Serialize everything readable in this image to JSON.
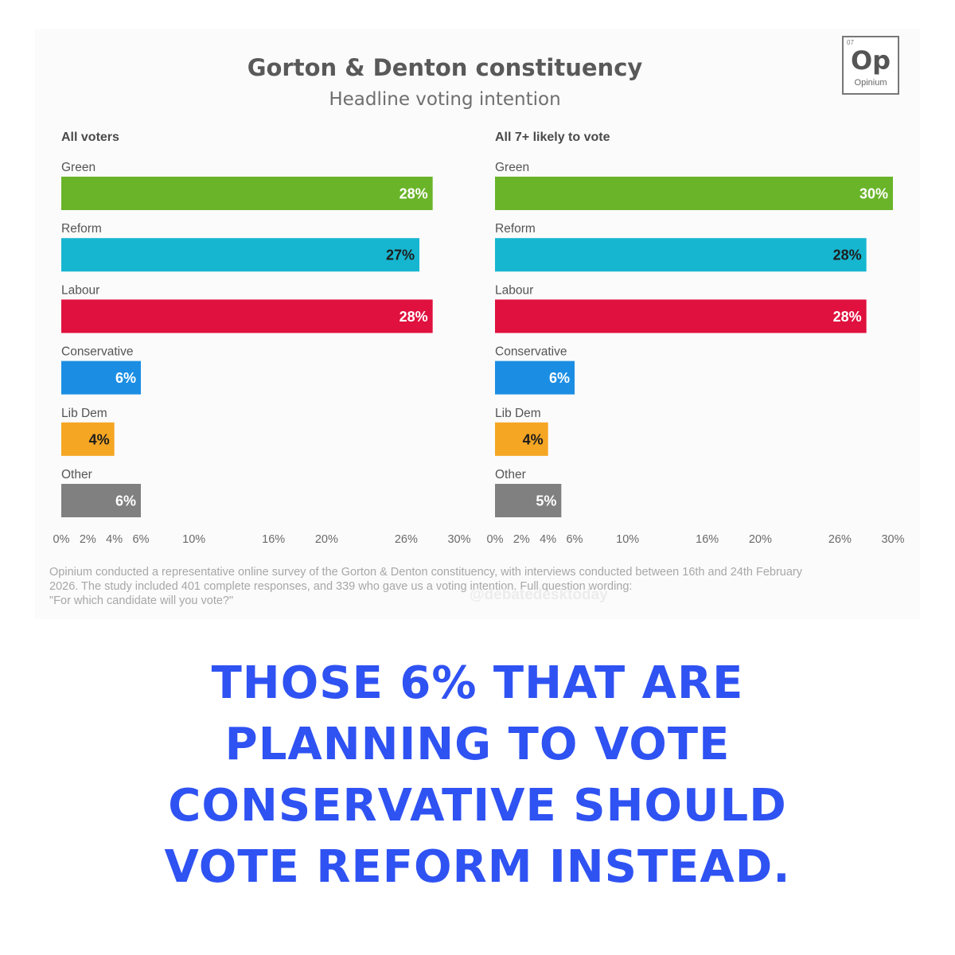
{
  "header": {
    "title": "Gorton & Denton constituency",
    "subtitle": "Headline voting intention"
  },
  "logo": {
    "number": "07",
    "symbol": "Op",
    "name": "Opinium"
  },
  "chart_data": [
    {
      "type": "bar",
      "orientation": "horizontal",
      "title": "All voters",
      "categories": [
        "Green",
        "Reform",
        "Labour",
        "Conservative",
        "Lib Dem",
        "Other"
      ],
      "values": [
        28,
        27,
        28,
        6,
        4,
        6
      ],
      "value_labels": [
        "28%",
        "27%",
        "28%",
        "6%",
        "4%",
        "6%"
      ],
      "xlim": [
        0,
        30
      ],
      "x_ticks": [
        0,
        2,
        4,
        6,
        10,
        16,
        20,
        26,
        30
      ],
      "x_tick_labels": [
        "0%",
        "2%",
        "4%",
        "6%",
        "10%",
        "16%",
        "20%",
        "26%",
        "30%"
      ]
    },
    {
      "type": "bar",
      "orientation": "horizontal",
      "title": "All 7+ likely to vote",
      "categories": [
        "Green",
        "Reform",
        "Labour",
        "Conservative",
        "Lib Dem",
        "Other"
      ],
      "values": [
        30,
        28,
        28,
        6,
        4,
        5
      ],
      "value_labels": [
        "30%",
        "28%",
        "28%",
        "6%",
        "4%",
        "5%"
      ],
      "xlim": [
        0,
        30
      ],
      "x_ticks": [
        0,
        2,
        4,
        6,
        10,
        16,
        20,
        26,
        30
      ],
      "x_tick_labels": [
        "0%",
        "2%",
        "4%",
        "6%",
        "10%",
        "16%",
        "20%",
        "26%",
        "30%"
      ]
    }
  ],
  "colors": {
    "Green": "#6ab42a",
    "Reform": "#16b6d0",
    "Labour": "#e0113f",
    "Conservative": "#1b8ee4",
    "Lib Dem": "#f5a623",
    "Other": "#808080",
    "label_dark": "#1d1d1d",
    "label_light": "#ffffff"
  },
  "footnote": {
    "line1": "Opinium conducted a representative online survey of the Gorton & Denton constituency, with interviews conducted between 16th and 24th February",
    "line2": "2026. The study included 401 complete responses, and 339 who gave us a voting intention. Full question wording:",
    "line3": "\"For which candidate will you vote?\""
  },
  "watermark": "@debatedesktoday",
  "caption": {
    "line1": "THOSE 6% THAT ARE",
    "line2": "PLANNING TO VOTE",
    "line3": "CONSERVATIVE SHOULD",
    "line4": "VOTE REFORM INSTEAD."
  }
}
